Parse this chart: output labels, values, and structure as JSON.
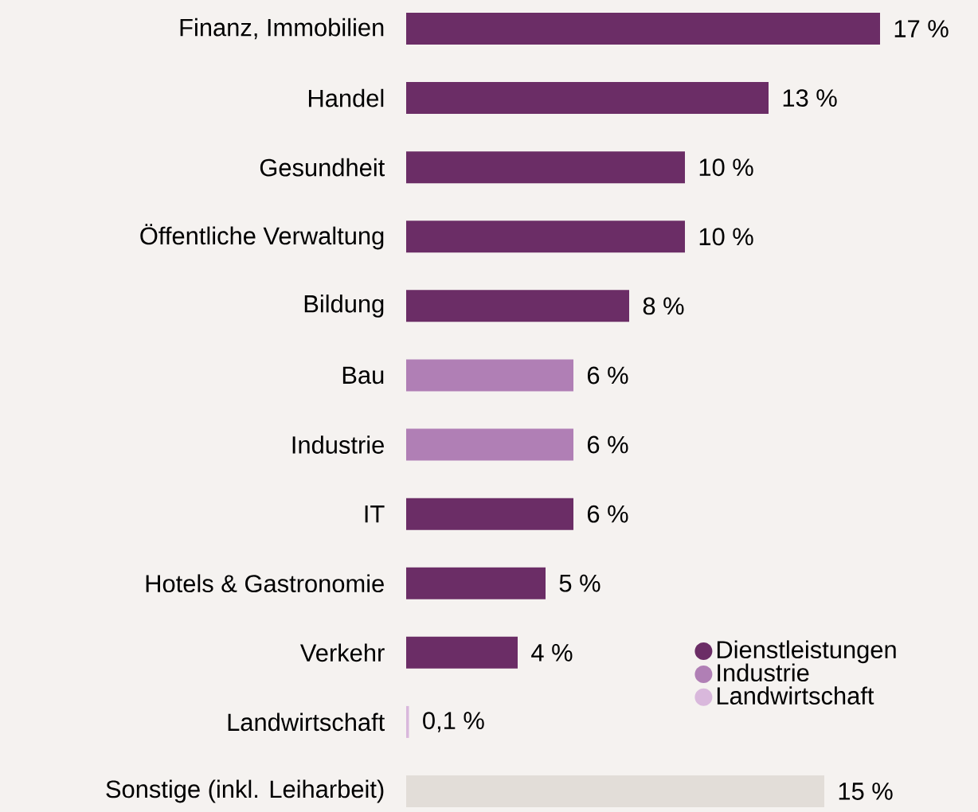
{
  "chart_data": {
    "type": "bar",
    "orientation": "horizontal",
    "categories": [
      "Finanz, Immobilien",
      "Handel",
      "Gesundheit",
      "Öffentliche Verwaltung",
      "Bildung",
      "Bau",
      "Industrie",
      "IT",
      "Hotels & Gastronomie",
      "Verkehr",
      "Landwirtschaft",
      "Sonstige (inkl. Leiharbeit)"
    ],
    "series": [
      {
        "name": "Dienstleistungen",
        "color": "#6b2d66",
        "values": [
          17,
          13,
          10,
          10,
          8,
          null,
          null,
          6,
          5,
          4,
          null,
          null
        ],
        "value_labels": [
          "17 %",
          "13 %",
          "10 %",
          "10 %",
          "8 %",
          null,
          null,
          "6 %",
          "5 %",
          "4 %",
          null,
          null
        ]
      },
      {
        "name": "Industrie",
        "color": "#b07fb5",
        "values": [
          null,
          null,
          null,
          null,
          null,
          6,
          6,
          null,
          null,
          null,
          null,
          null
        ],
        "value_labels": [
          null,
          null,
          null,
          null,
          null,
          "6 %",
          "6 %",
          null,
          null,
          null,
          null,
          null
        ]
      },
      {
        "name": "Landwirtschaft",
        "color": "#d9b8dc",
        "values": [
          null,
          null,
          null,
          null,
          null,
          null,
          null,
          null,
          null,
          null,
          0.1,
          null
        ],
        "value_labels": [
          null,
          null,
          null,
          null,
          null,
          null,
          null,
          null,
          null,
          null,
          "0,1 %",
          null
        ]
      },
      {
        "color": "#e2ddd8",
        "values": [
          null,
          null,
          null,
          null,
          null,
          null,
          null,
          null,
          null,
          null,
          null,
          15
        ],
        "value_labels": [
          null,
          null,
          null,
          null,
          null,
          null,
          null,
          null,
          null,
          null,
          null,
          "15 %"
        ]
      }
    ],
    "legend": "bottom right"
  }
}
